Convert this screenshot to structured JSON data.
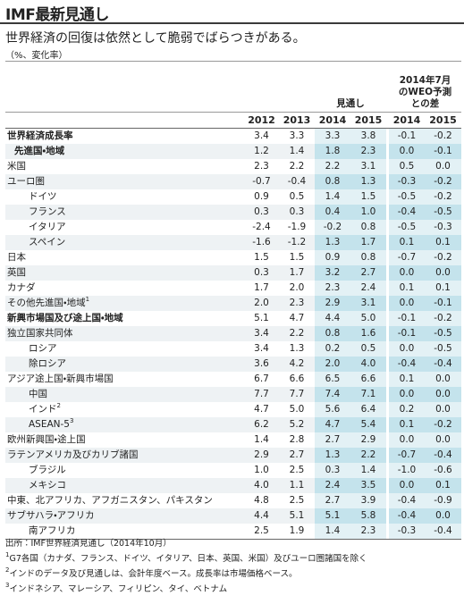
{
  "header": {
    "title": "IMF最新見通し",
    "subtitle": "世界経済の回復は依然として脆弱でばらつきがある。",
    "unit": "（%、変化率）"
  },
  "table": {
    "group_headers": {
      "forecast": "見通し",
      "revision": [
        "2014年7月",
        "のWEO予測",
        "との差"
      ]
    },
    "columns": [
      "2012",
      "2013",
      "2014",
      "2015",
      "2014",
      "2015"
    ],
    "rows": [
      {
        "label": "世界経済成長率",
        "values": [
          "3.4",
          "3.3",
          "3.3",
          "3.8",
          "-0.1",
          "-0.2"
        ]
      },
      {
        "label": "先進国・地域",
        "values": [
          "1.2",
          "1.4",
          "1.8",
          "2.3",
          "0.0",
          "-0.1"
        ]
      },
      {
        "label": "米国",
        "values": [
          "2.3",
          "2.2",
          "2.2",
          "3.1",
          "0.5",
          "0.0"
        ]
      },
      {
        "label": "ユーロ圏",
        "values": [
          "-0.7",
          "-0.4",
          "0.8",
          "1.3",
          "-0.3",
          "-0.2"
        ]
      },
      {
        "label": "ドイツ",
        "values": [
          "0.9",
          "0.5",
          "1.4",
          "1.5",
          "-0.5",
          "-0.2"
        ]
      },
      {
        "label": "フランス",
        "values": [
          "0.3",
          "0.3",
          "0.4",
          "1.0",
          "-0.4",
          "-0.5"
        ]
      },
      {
        "label": "イタリア",
        "values": [
          "-2.4",
          "-1.9",
          "-0.2",
          "0.8",
          "-0.5",
          "-0.3"
        ]
      },
      {
        "label": "スペイン",
        "values": [
          "-1.6",
          "-1.2",
          "1.3",
          "1.7",
          "0.1",
          "0.1"
        ]
      },
      {
        "label": "日本",
        "values": [
          "1.5",
          "1.5",
          "0.9",
          "0.8",
          "-0.7",
          "-0.2"
        ]
      },
      {
        "label": "英国",
        "values": [
          "0.3",
          "1.7",
          "3.2",
          "2.7",
          "0.0",
          "0.0"
        ]
      },
      {
        "label": "カナダ",
        "values": [
          "1.7",
          "2.0",
          "2.3",
          "2.4",
          "0.1",
          "0.1"
        ]
      },
      {
        "label": "その他先進国・地域",
        "note": "1",
        "values": [
          "2.0",
          "2.3",
          "2.9",
          "3.1",
          "0.0",
          "-0.1"
        ]
      },
      {
        "label": "新興市場国及び途上国・地域",
        "values": [
          "5.1",
          "4.7",
          "4.4",
          "5.0",
          "-0.1",
          "-0.2"
        ]
      },
      {
        "label": "独立国家共同体",
        "values": [
          "3.4",
          "2.2",
          "0.8",
          "1.6",
          "-0.1",
          "-0.5"
        ]
      },
      {
        "label": "ロシア",
        "values": [
          "3.4",
          "1.3",
          "0.2",
          "0.5",
          "0.0",
          "-0.5"
        ]
      },
      {
        "label": "除ロシア",
        "values": [
          "3.6",
          "4.2",
          "2.0",
          "4.0",
          "-0.4",
          "-0.4"
        ]
      },
      {
        "label": "アジア途上国・新興市場国",
        "values": [
          "6.7",
          "6.6",
          "6.5",
          "6.6",
          "0.1",
          "0.0"
        ]
      },
      {
        "label": "中国",
        "values": [
          "7.7",
          "7.7",
          "7.4",
          "7.1",
          "0.0",
          "0.0"
        ]
      },
      {
        "label": "インド",
        "note": "2",
        "values": [
          "4.7",
          "5.0",
          "5.6",
          "6.4",
          "0.2",
          "0.0"
        ]
      },
      {
        "label": "ASEAN-5",
        "note": "3",
        "values": [
          "6.2",
          "5.2",
          "4.7",
          "5.4",
          "0.1",
          "-0.2"
        ]
      },
      {
        "label": "欧州新興国・途上国",
        "values": [
          "1.4",
          "2.8",
          "2.7",
          "2.9",
          "0.0",
          "0.0"
        ]
      },
      {
        "label": "ラテンアメリカ及びカリブ諸国",
        "values": [
          "2.9",
          "2.7",
          "1.3",
          "2.2",
          "-0.7",
          "-0.4"
        ]
      },
      {
        "label": "ブラジル",
        "values": [
          "1.0",
          "2.5",
          "0.3",
          "1.4",
          "-1.0",
          "-0.6"
        ]
      },
      {
        "label": "メキシコ",
        "values": [
          "4.0",
          "1.1",
          "2.4",
          "3.5",
          "0.0",
          "0.1"
        ]
      },
      {
        "label": "中東、北アフリカ、アフガニスタン、パキスタン",
        "values": [
          "4.8",
          "2.5",
          "2.7",
          "3.9",
          "-0.4",
          "-0.9"
        ]
      },
      {
        "label": "サブサハラ・アフリカ",
        "values": [
          "4.4",
          "5.1",
          "5.1",
          "5.8",
          "-0.4",
          "0.0"
        ]
      },
      {
        "label": "南アフリカ",
        "values": [
          "2.5",
          "1.9",
          "1.4",
          "2.3",
          "-0.3",
          "-0.4"
        ]
      }
    ]
  },
  "footer": {
    "source": "出所：IMF世界経済見通し（2014年10月）",
    "notes": [
      {
        "mark": "1",
        "text": "G7各国（カナダ、フランス、ドイツ、イタリア、日本、英国、米国）及びユーロ圏諸国を除く"
      },
      {
        "mark": "2",
        "text": "インドのデータ及び見通しは、会計年度ベース。成長率は市場価格ベース。"
      },
      {
        "mark": "3",
        "text": "インドネシア、マレーシア、フィリピン、タイ、ベトナム"
      }
    ]
  }
}
